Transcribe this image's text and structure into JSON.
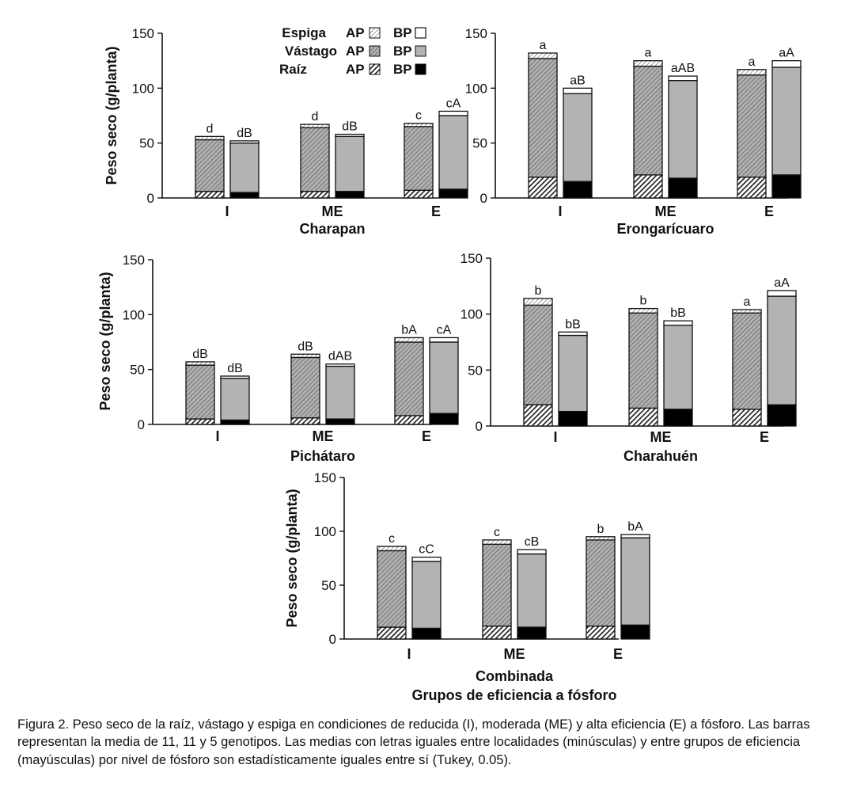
{
  "legend": {
    "rows": [
      {
        "label": "Espiga",
        "ap": "AP",
        "bp": "BP"
      },
      {
        "label": "Vástago",
        "ap": "AP",
        "bp": "BP"
      },
      {
        "label": "Raíz",
        "ap": "AP",
        "bp": "BP"
      }
    ]
  },
  "colors": {
    "raiz_ap": "#1a1a1a",
    "raiz_bp": "#000000",
    "vastago_ap": "#a8a8a8",
    "vastago_bp": "#b3b3b3",
    "espiga_ap": "#ffffff",
    "espiga_bp": "#ffffff",
    "hatch": "#222222",
    "axis": "#111111"
  },
  "chart_data": [
    {
      "type": "bar",
      "stacked": true,
      "title": "Charapan",
      "ylabel": "Peso seco (g/planta)",
      "ylim": [
        0,
        150
      ],
      "yticks": [
        0,
        50,
        100,
        150
      ],
      "categories": [
        "I",
        "ME",
        "E"
      ],
      "stack_order": [
        "Raíz",
        "Vástago",
        "Espiga"
      ],
      "series": [
        {
          "name": "AP",
          "raiz": [
            6,
            6,
            7
          ],
          "vastago": [
            47,
            58,
            58
          ],
          "espiga": [
            3,
            3,
            3
          ],
          "letters": [
            "d",
            "d",
            "c"
          ]
        },
        {
          "name": "BP",
          "raiz": [
            5,
            6,
            8
          ],
          "vastago": [
            45,
            50,
            67
          ],
          "espiga": [
            2,
            2,
            4
          ],
          "letters": [
            "dB",
            "dB",
            "cA"
          ]
        }
      ]
    },
    {
      "type": "bar",
      "stacked": true,
      "title": "Erongarícuaro",
      "ylabel": "",
      "ylim": [
        0,
        150
      ],
      "yticks": [
        0,
        50,
        100,
        150
      ],
      "categories": [
        "I",
        "ME",
        "E"
      ],
      "stack_order": [
        "Raíz",
        "Vástago",
        "Espiga"
      ],
      "series": [
        {
          "name": "AP",
          "raiz": [
            19,
            21,
            19
          ],
          "vastago": [
            108,
            99,
            93
          ],
          "espiga": [
            5,
            5,
            5
          ],
          "letters": [
            "a",
            "a",
            "a"
          ]
        },
        {
          "name": "BP",
          "raiz": [
            15,
            18,
            21
          ],
          "vastago": [
            80,
            89,
            98
          ],
          "espiga": [
            5,
            4,
            6
          ],
          "letters": [
            "aB",
            "aAB",
            "aA"
          ]
        }
      ]
    },
    {
      "type": "bar",
      "stacked": true,
      "title": "Pichátaro",
      "ylabel": "Peso seco (g/planta)",
      "ylim": [
        0,
        150
      ],
      "yticks": [
        0,
        50,
        100,
        150
      ],
      "categories": [
        "I",
        "ME",
        "E"
      ],
      "stack_order": [
        "Raíz",
        "Vástago",
        "Espiga"
      ],
      "series": [
        {
          "name": "AP",
          "raiz": [
            5,
            6,
            8
          ],
          "vastago": [
            49,
            55,
            67
          ],
          "espiga": [
            3,
            3,
            4
          ],
          "letters": [
            "dB",
            "dB",
            "bA"
          ]
        },
        {
          "name": "BP",
          "raiz": [
            4,
            5,
            10
          ],
          "vastago": [
            38,
            48,
            65
          ],
          "espiga": [
            2,
            2,
            4
          ],
          "letters": [
            "dB",
            "dAB",
            "cA"
          ]
        }
      ]
    },
    {
      "type": "bar",
      "stacked": true,
      "title": "Charahuén",
      "ylabel": "",
      "ylim": [
        0,
        150
      ],
      "yticks": [
        0,
        50,
        100,
        150
      ],
      "categories": [
        "I",
        "ME",
        "E"
      ],
      "stack_order": [
        "Raíz",
        "Vástago",
        "Espiga"
      ],
      "series": [
        {
          "name": "AP",
          "raiz": [
            19,
            16,
            15
          ],
          "vastago": [
            89,
            85,
            86
          ],
          "espiga": [
            6,
            4,
            3
          ],
          "letters": [
            "b",
            "b",
            "a"
          ]
        },
        {
          "name": "BP",
          "raiz": [
            13,
            15,
            19
          ],
          "vastago": [
            68,
            75,
            97
          ],
          "espiga": [
            3,
            4,
            5
          ],
          "letters": [
            "bB",
            "bB",
            "aA"
          ]
        }
      ]
    },
    {
      "type": "bar",
      "stacked": true,
      "title": "Combinada",
      "xlabel": "Grupos de eficiencia a fósforo",
      "ylabel": "Peso seco (g/planta)",
      "ylim": [
        0,
        150
      ],
      "yticks": [
        0,
        50,
        100,
        150
      ],
      "categories": [
        "I",
        "ME",
        "E"
      ],
      "stack_order": [
        "Raíz",
        "Vástago",
        "Espiga"
      ],
      "series": [
        {
          "name": "AP",
          "raiz": [
            11,
            12,
            12
          ],
          "vastago": [
            71,
            76,
            80
          ],
          "espiga": [
            4,
            4,
            3
          ],
          "letters": [
            "c",
            "c",
            "b"
          ]
        },
        {
          "name": "BP",
          "raiz": [
            10,
            11,
            13
          ],
          "vastago": [
            62,
            68,
            81
          ],
          "espiga": [
            4,
            4,
            3
          ],
          "letters": [
            "cC",
            "cB",
            "bA"
          ]
        }
      ]
    }
  ],
  "caption": "Figura 2. Peso seco de la raíz, vástago y espiga en condiciones de reducida (I), moderada (ME) y alta eficiencia (E) a fósforo. Las barras representan la media de 11, 11 y 5 genotipos. Las medias con letras iguales entre localidades (minúsculas) y entre grupos de eficiencia (mayúsculas) por nivel de fósforo son estadísticamente iguales entre sí (Tukey, 0.05)."
}
